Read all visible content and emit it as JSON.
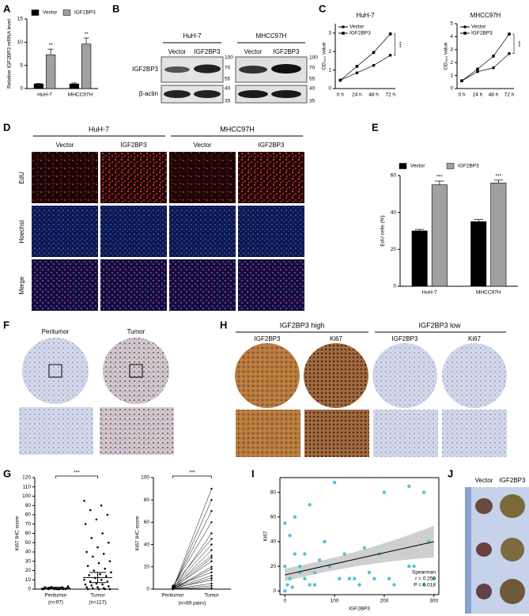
{
  "figure": {
    "panel_labels": [
      "A",
      "B",
      "C",
      "D",
      "E",
      "F",
      "G",
      "H",
      "I",
      "J"
    ],
    "blot": {
      "cell_lines": [
        "HuH-7",
        "MHCC97H"
      ],
      "lanes": [
        "Vector",
        "IGF2BP3",
        "Vector",
        "IGF2BP3"
      ],
      "proteins": [
        "IGF2BP3",
        "β-actin"
      ],
      "markers": [
        100,
        70,
        55,
        40,
        35
      ]
    },
    "edu": {
      "cell_lines": [
        "HuH-7",
        "MHCC97H"
      ],
      "columns": [
        "Vector",
        "IGF2BP3",
        "Vector",
        "IGF2BP3"
      ],
      "rows": [
        "EdU",
        "Hoechst",
        "Merge"
      ]
    },
    "ihc": {
      "columns": [
        "Peritumor",
        "Tumor"
      ]
    },
    "ihc_groups": {
      "groups": [
        "IGF2BP3 high",
        "IGF2BP3 low"
      ],
      "columns": [
        "IGF2BP3",
        "Ki67",
        "IGF2BP3",
        "Ki67"
      ]
    },
    "xenograft": {
      "columns": [
        "Vector",
        "IGF2BP3"
      ]
    }
  },
  "chart_data": [
    {
      "type": "bar",
      "ylabel": "Relative IGF2BP3 mRNA level",
      "categories": [
        "HuH-7",
        "MHCC97H"
      ],
      "series": [
        {
          "name": "Vector",
          "color": "#000000",
          "values": [
            1,
            1
          ],
          "errors": [
            0.1,
            0.2
          ]
        },
        {
          "name": "IGF2BP3",
          "color": "#a0a0a0",
          "values": [
            7.3,
            9.6
          ],
          "errors": [
            1.2,
            1.3
          ]
        }
      ],
      "annotations": [
        "**",
        "**"
      ],
      "ylim": [
        0,
        15
      ],
      "yticks": [
        0,
        5,
        10,
        15
      ]
    },
    {
      "type": "line",
      "title": "HuH-7",
      "ylabel": "OD₄₅₀ value",
      "categories": [
        "0 h",
        "24 h",
        "48 h",
        "72 h"
      ],
      "series": [
        {
          "name": "Vector",
          "color": "#000000",
          "marker": "circle",
          "values": [
            0.45,
            0.85,
            1.25,
            1.8
          ]
        },
        {
          "name": "IGF2BP3",
          "color": "#000000",
          "marker": "square",
          "values": [
            0.45,
            1.2,
            1.95,
            2.95
          ]
        }
      ],
      "annotations": [
        "***"
      ],
      "ylim": [
        0,
        3.5
      ],
      "yticks": [
        0,
        1,
        2,
        3
      ]
    },
    {
      "type": "line",
      "title": "MHCC97H",
      "ylabel": "OD₄₅₀ value",
      "categories": [
        "0 h",
        "24 h",
        "48 h",
        "72 h"
      ],
      "series": [
        {
          "name": "Vector",
          "color": "#000000",
          "marker": "circle",
          "values": [
            0.6,
            1.3,
            1.6,
            2.7
          ]
        },
        {
          "name": "IGF2BP3",
          "color": "#000000",
          "marker": "square",
          "values": [
            0.6,
            1.5,
            2.5,
            4.2
          ]
        }
      ],
      "annotations": [
        "***"
      ],
      "ylim": [
        0,
        5
      ],
      "yticks": [
        0,
        1,
        2,
        3,
        4,
        5
      ]
    },
    {
      "type": "bar",
      "ylabel": "EdU cells (%)",
      "categories": [
        "HuH-7",
        "MHCC97H"
      ],
      "series": [
        {
          "name": "Vector",
          "color": "#000000",
          "values": [
            30,
            35
          ],
          "errors": [
            0.8,
            1.2
          ]
        },
        {
          "name": "IGF2BP3",
          "color": "#a0a0a0",
          "values": [
            55,
            56
          ],
          "errors": [
            2,
            1.5
          ]
        }
      ],
      "annotations": [
        "***",
        "***"
      ],
      "ylim": [
        0,
        60
      ],
      "yticks": [
        0,
        20,
        40,
        60
      ]
    },
    {
      "type": "strip",
      "ylabel": "Ki67 IHC score",
      "categories": [
        "Peritumor",
        "Tumor"
      ],
      "sample_sizes": [
        "(n=97)",
        "(n=117)"
      ],
      "groups": [
        [
          0,
          0,
          0,
          0,
          0,
          0,
          1,
          1,
          1,
          1,
          2,
          2,
          2,
          3,
          0,
          1,
          0,
          2,
          1,
          0
        ],
        [
          95,
          90,
          85,
          80,
          75,
          70,
          60,
          55,
          50,
          45,
          40,
          38,
          35,
          30,
          28,
          25,
          22,
          20,
          18,
          16,
          15,
          14,
          12,
          10,
          10,
          8,
          8,
          6,
          5,
          5,
          4,
          3,
          2,
          2,
          1,
          1,
          0,
          0,
          0,
          0
        ]
      ],
      "means": [
        1,
        12.5
      ],
      "errors": [
        1,
        5.5
      ],
      "annotations": [
        "***"
      ],
      "ylim": [
        0,
        120
      ],
      "yticks": [
        0,
        10,
        20,
        30,
        40,
        50,
        60,
        70,
        80,
        90,
        100,
        110,
        120
      ]
    },
    {
      "type": "paired",
      "ylabel": "Ki67 IHC score",
      "xlabel": "(n=89 pairs)",
      "categories": [
        "Peritumor",
        "Tumor"
      ],
      "before": [
        0,
        0,
        1,
        2,
        0,
        3,
        1,
        0,
        2,
        0,
        1,
        0,
        0,
        2,
        1,
        0,
        1,
        0,
        0,
        0
      ],
      "after": [
        90,
        80,
        70,
        60,
        50,
        45,
        40,
        35,
        30,
        28,
        25,
        20,
        18,
        15,
        12,
        10,
        8,
        5,
        3,
        1
      ],
      "annotations": [
        "***"
      ],
      "ylim": [
        0,
        100
      ],
      "yticks": [
        0,
        20,
        40,
        60,
        80,
        100
      ]
    },
    {
      "type": "scatter",
      "xlabel": "IGF2BP3",
      "ylabel": "Ki67",
      "color": "#4fc3d6",
      "x": [
        0,
        5,
        10,
        20,
        30,
        40,
        50,
        60,
        70,
        80,
        100,
        120,
        140,
        150,
        160,
        180,
        200,
        220,
        250,
        280,
        290,
        300,
        0,
        10,
        20,
        30,
        50,
        90,
        130,
        170,
        210,
        260,
        280,
        0,
        40,
        110,
        190,
        60,
        15,
        250
      ],
      "y": [
        0,
        5,
        10,
        30,
        20,
        10,
        70,
        15,
        25,
        40,
        88,
        30,
        10,
        5,
        35,
        10,
        80,
        5,
        85,
        80,
        40,
        10,
        55,
        45,
        60,
        15,
        5,
        20,
        10,
        15,
        10,
        20,
        5,
        20,
        30,
        10,
        30,
        5,
        3,
        20
      ],
      "fit": {
        "x": [
          0,
          300
        ],
        "y": [
          13,
          40
        ]
      },
      "annotations": [
        "Spearman",
        "r = 0.250",
        "P = 0.018"
      ],
      "xlim": [
        -10,
        310
      ],
      "xticks": [
        0,
        100,
        200,
        300
      ],
      "ylim": [
        -3,
        92
      ],
      "yticks": [
        0,
        20,
        40,
        60,
        80
      ]
    }
  ]
}
